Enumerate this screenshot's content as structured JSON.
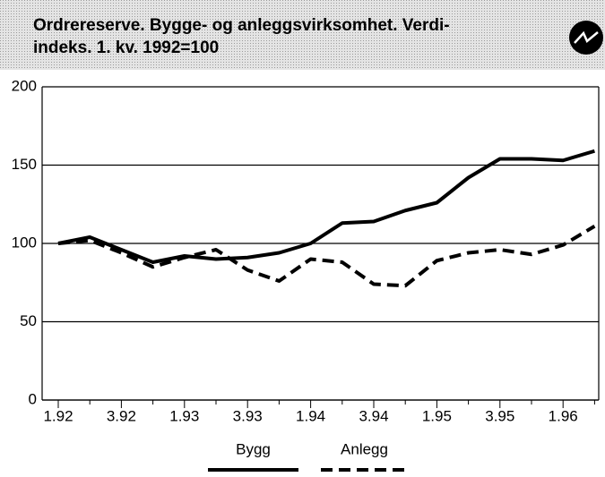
{
  "chart_data": {
    "type": "line",
    "title": [
      "Ordrereserve. Bygge- og anleggsvirksomhet. Verdi-",
      "indeks. 1. kv. 1992=100"
    ],
    "categories": [
      "1.92",
      null,
      "3.92",
      null,
      "1.93",
      null,
      "3.93",
      null,
      "1.94",
      null,
      "3.94",
      null,
      "1.95",
      null,
      "3.95",
      null,
      "1.96",
      null
    ],
    "series": [
      {
        "name": "Bygg",
        "color": "#000000",
        "dash": false,
        "values": [
          100,
          104,
          96,
          88,
          92,
          90,
          91,
          94,
          100,
          113,
          114,
          121,
          126,
          142,
          154,
          154,
          153,
          159
        ]
      },
      {
        "name": "Anlegg",
        "color": "#000000",
        "dash": true,
        "values": [
          100,
          102,
          94,
          85,
          91,
          96,
          83,
          76,
          90,
          88,
          74,
          73,
          89,
          94,
          96,
          93,
          99,
          111
        ]
      }
    ],
    "ylim": [
      0,
      200
    ],
    "yticks": [
      0,
      50,
      100,
      150,
      200
    ],
    "grid": true,
    "legend": "bottom"
  }
}
